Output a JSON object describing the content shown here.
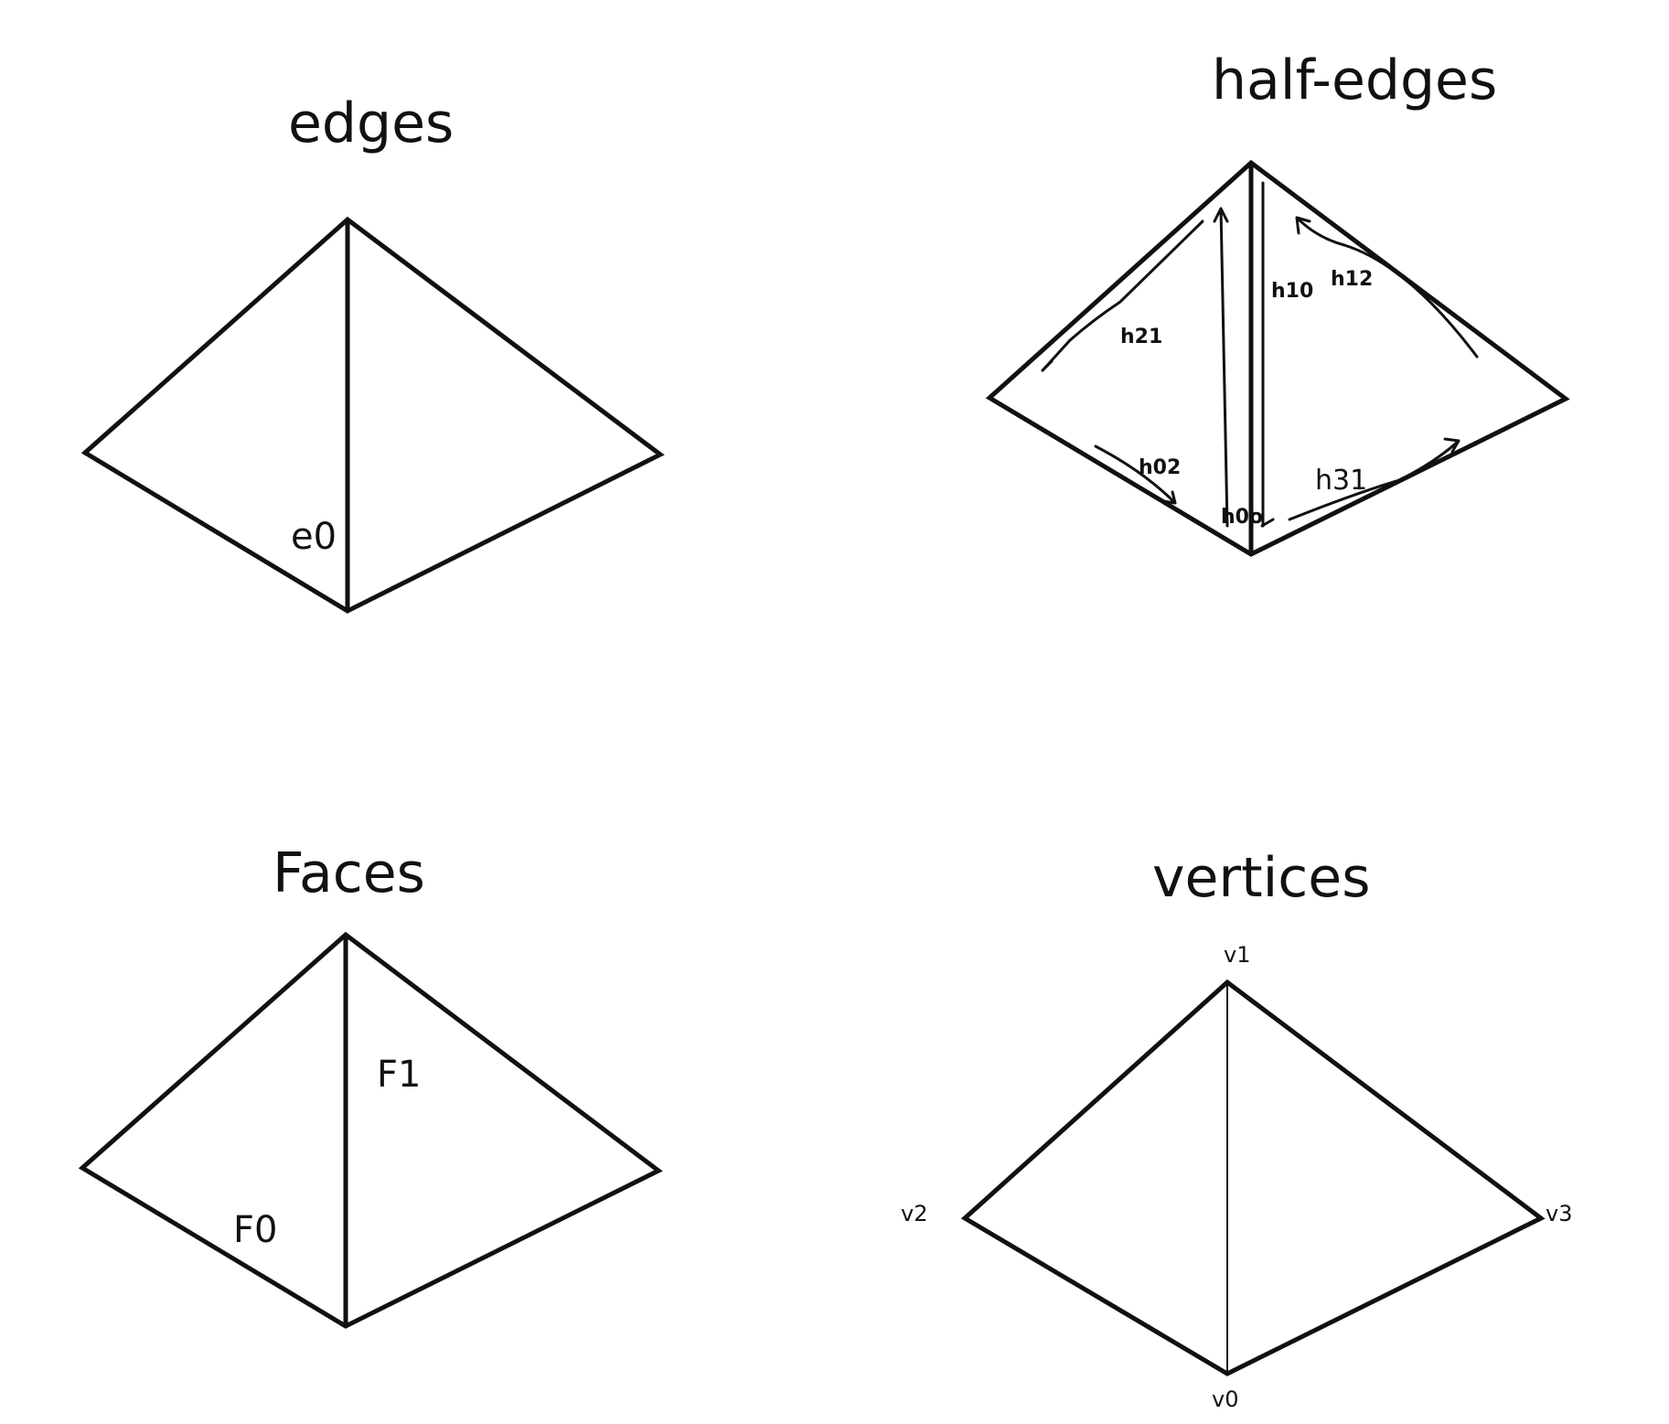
{
  "panels": {
    "edges": {
      "title": "edges",
      "labels": {
        "e0": "e0"
      }
    },
    "half_edges": {
      "title": "half-edges",
      "labels": {
        "h21": "h21",
        "h10": "h10",
        "h12": "h12",
        "h02": "h02",
        "h00": "h0o",
        "h31": "h31"
      }
    },
    "faces": {
      "title": "Faces",
      "labels": {
        "f0": "F0",
        "f1": "F1"
      }
    },
    "vertices": {
      "title": "vertices",
      "labels": {
        "v0": "v0",
        "v1": "v1",
        "v2": "v2",
        "v3": "v3"
      }
    }
  }
}
